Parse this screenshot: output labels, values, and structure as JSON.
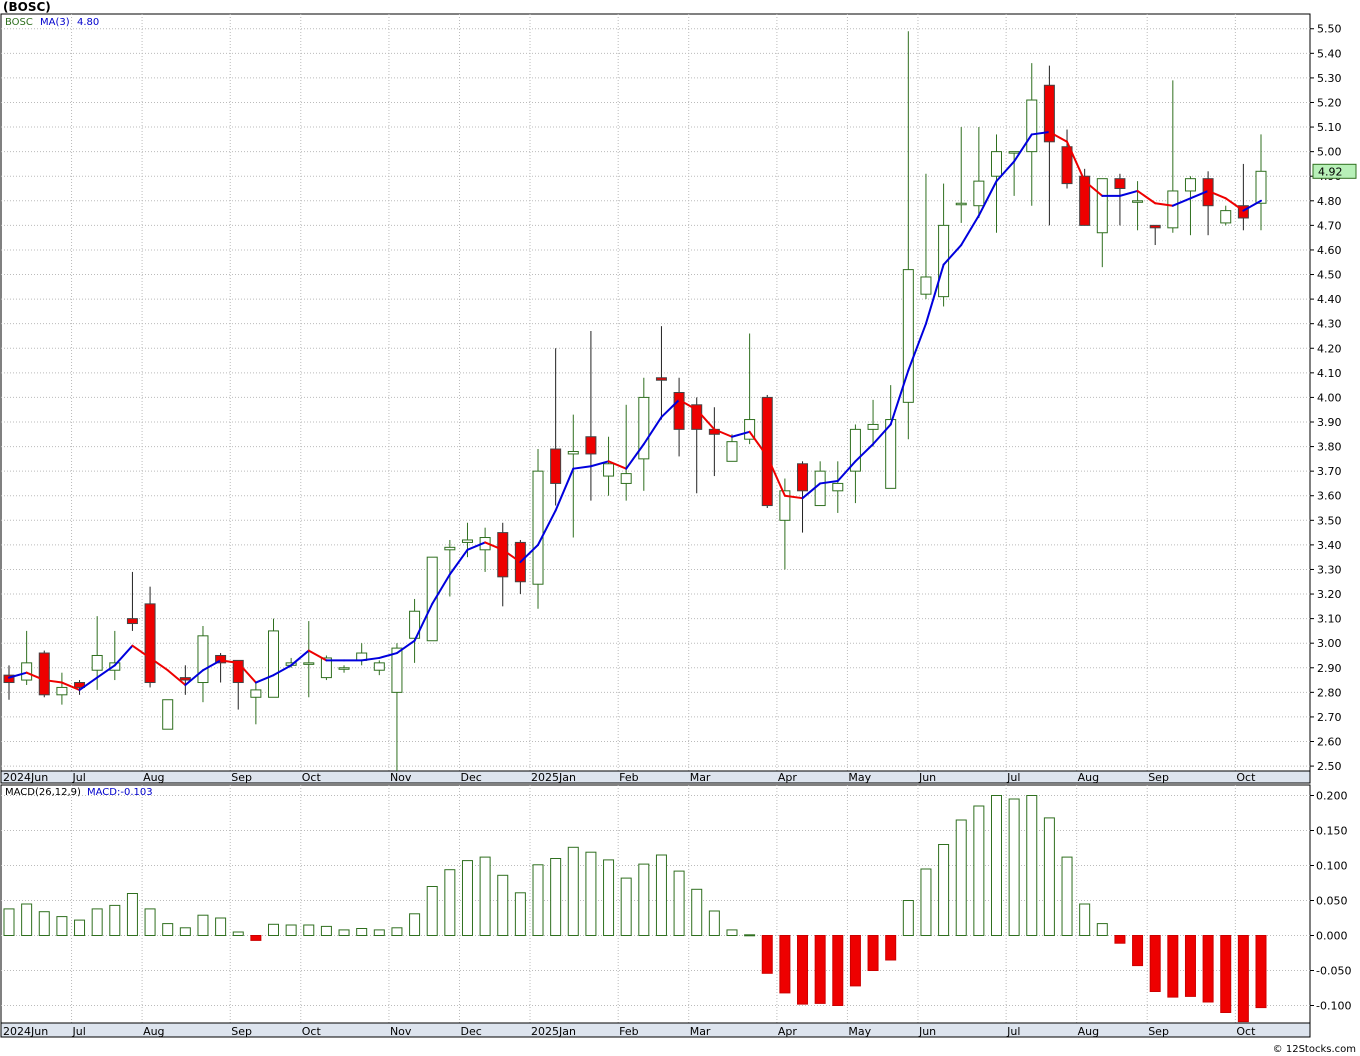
{
  "window": {
    "title": "(BOSC)",
    "footer": "© 12Stocks.com"
  },
  "colors": {
    "up_stroke": "#2f6f1f",
    "down_fill": "#ee0000",
    "ma_up": "#0000dd",
    "ma_down": "#ee0000",
    "grid": "#bbbbbb",
    "badge": "#b8f0b8"
  },
  "price_panel": {
    "legend": {
      "symbol": "BOSC",
      "ma_label": "MA(3)",
      "ma_value": "4.80"
    },
    "last_price": "4.92",
    "yticks": [
      "2.50",
      "2.60",
      "2.70",
      "2.80",
      "2.90",
      "3.00",
      "3.10",
      "3.20",
      "3.30",
      "3.40",
      "3.50",
      "3.60",
      "3.70",
      "3.80",
      "3.90",
      "4.00",
      "4.10",
      "4.20",
      "4.30",
      "4.40",
      "4.50",
      "4.60",
      "4.70",
      "4.80",
      "4.90",
      "5.00",
      "5.10",
      "5.20",
      "5.30",
      "5.40",
      "5.50"
    ]
  },
  "macd_panel": {
    "legend": {
      "label": "MACD(26,12,9)",
      "value_label": "MACD:-0.103"
    },
    "yticks": [
      "-0.100",
      "-0.050",
      "0.000",
      "0.050",
      "0.100",
      "0.150",
      "0.200"
    ]
  },
  "months": [
    "2024Jun",
    "Jul",
    "Aug",
    "Sep",
    "Oct",
    "Nov",
    "Dec",
    "2025Jan",
    "Feb",
    "Mar",
    "Apr",
    "May",
    "Jun",
    "Jul",
    "Aug",
    "Sep",
    "Oct"
  ],
  "chart_data": {
    "type": "candlestick",
    "title": "(BOSC)",
    "ylim": [
      2.48,
      5.56
    ],
    "macd_ylim": [
      -0.125,
      0.215
    ],
    "candles": [
      {
        "o": 2.87,
        "h": 2.91,
        "l": 2.77,
        "c": 2.84,
        "ma": 2.86
      },
      {
        "o": 2.85,
        "h": 3.05,
        "l": 2.83,
        "c": 2.92,
        "ma": 2.88
      },
      {
        "o": 2.96,
        "h": 2.97,
        "l": 2.78,
        "c": 2.79,
        "ma": 2.85
      },
      {
        "o": 2.79,
        "h": 2.88,
        "l": 2.75,
        "c": 2.82,
        "ma": 2.84
      },
      {
        "o": 2.84,
        "h": 2.85,
        "l": 2.79,
        "c": 2.82,
        "ma": 2.81
      },
      {
        "o": 2.89,
        "h": 3.11,
        "l": 2.81,
        "c": 2.95,
        "ma": 2.86
      },
      {
        "o": 2.89,
        "h": 3.05,
        "l": 2.85,
        "c": 2.92,
        "ma": 2.91
      },
      {
        "o": 3.1,
        "h": 3.29,
        "l": 3.05,
        "c": 3.08,
        "ma": 2.99
      },
      {
        "o": 3.16,
        "h": 3.23,
        "l": 2.82,
        "c": 2.84,
        "ma": 2.94
      },
      {
        "o": 2.65,
        "h": 2.77,
        "l": 2.65,
        "c": 2.77,
        "ma": 2.89
      },
      {
        "o": 2.86,
        "h": 2.91,
        "l": 2.79,
        "c": 2.85,
        "ma": 2.83
      },
      {
        "o": 2.84,
        "h": 3.07,
        "l": 2.76,
        "c": 3.03,
        "ma": 2.89
      },
      {
        "o": 2.95,
        "h": 2.96,
        "l": 2.84,
        "c": 2.92,
        "ma": 2.93
      },
      {
        "o": 2.93,
        "h": 2.93,
        "l": 2.73,
        "c": 2.84,
        "ma": 2.92
      },
      {
        "o": 2.78,
        "h": 2.84,
        "l": 2.67,
        "c": 2.81,
        "ma": 2.84
      },
      {
        "o": 2.78,
        "h": 3.1,
        "l": 2.78,
        "c": 3.05,
        "ma": 2.87
      },
      {
        "o": 2.91,
        "h": 2.94,
        "l": 2.9,
        "c": 2.92,
        "ma": 2.91
      },
      {
        "o": 2.92,
        "h": 3.09,
        "l": 2.78,
        "c": 2.92,
        "ma": 2.97
      },
      {
        "o": 2.86,
        "h": 2.95,
        "l": 2.85,
        "c": 2.94,
        "ma": 2.93
      },
      {
        "o": 2.9,
        "h": 2.91,
        "l": 2.88,
        "c": 2.9,
        "ma": 2.93
      },
      {
        "o": 2.93,
        "h": 3.0,
        "l": 2.91,
        "c": 2.96,
        "ma": 2.93
      },
      {
        "o": 2.89,
        "h": 2.93,
        "l": 2.87,
        "c": 2.92,
        "ma": 2.94
      },
      {
        "o": 2.8,
        "h": 3.0,
        "l": 2.48,
        "c": 2.98,
        "ma": 2.96
      },
      {
        "o": 3.02,
        "h": 3.18,
        "l": 2.92,
        "c": 3.13,
        "ma": 3.01
      },
      {
        "o": 3.01,
        "h": 3.35,
        "l": 3.02,
        "c": 3.35,
        "ma": 3.16
      },
      {
        "o": 3.38,
        "h": 3.42,
        "l": 3.19,
        "c": 3.39,
        "ma": 3.28
      },
      {
        "o": 3.41,
        "h": 3.49,
        "l": 3.35,
        "c": 3.42,
        "ma": 3.38
      },
      {
        "o": 3.38,
        "h": 3.47,
        "l": 3.29,
        "c": 3.43,
        "ma": 3.41
      },
      {
        "o": 3.45,
        "h": 3.49,
        "l": 3.15,
        "c": 3.27,
        "ma": 3.38
      },
      {
        "o": 3.41,
        "h": 3.42,
        "l": 3.2,
        "c": 3.25,
        "ma": 3.33
      },
      {
        "o": 3.24,
        "h": 3.79,
        "l": 3.14,
        "c": 3.7,
        "ma": 3.4
      },
      {
        "o": 3.79,
        "h": 4.2,
        "l": 3.56,
        "c": 3.65,
        "ma": 3.54
      },
      {
        "o": 3.77,
        "h": 3.93,
        "l": 3.43,
        "c": 3.78,
        "ma": 3.71
      },
      {
        "o": 3.84,
        "h": 4.27,
        "l": 3.58,
        "c": 3.77,
        "ma": 3.72
      },
      {
        "o": 3.68,
        "h": 3.84,
        "l": 3.6,
        "c": 3.73,
        "ma": 3.74
      },
      {
        "o": 3.65,
        "h": 3.97,
        "l": 3.58,
        "c": 3.69,
        "ma": 3.71
      },
      {
        "o": 3.75,
        "h": 4.08,
        "l": 3.62,
        "c": 4.0,
        "ma": 3.81
      },
      {
        "o": 4.08,
        "h": 4.29,
        "l": 3.91,
        "c": 4.07,
        "ma": 3.92
      },
      {
        "o": 4.02,
        "h": 4.08,
        "l": 3.76,
        "c": 3.87,
        "ma": 3.99
      },
      {
        "o": 3.97,
        "h": 4.0,
        "l": 3.61,
        "c": 3.87,
        "ma": 3.95
      },
      {
        "o": 3.87,
        "h": 3.96,
        "l": 3.68,
        "c": 3.85,
        "ma": 3.87
      },
      {
        "o": 3.74,
        "h": 3.85,
        "l": 3.74,
        "c": 3.82,
        "ma": 3.84
      },
      {
        "o": 3.83,
        "h": 4.26,
        "l": 3.81,
        "c": 3.91,
        "ma": 3.86
      },
      {
        "o": 4.0,
        "h": 4.01,
        "l": 3.55,
        "c": 3.56,
        "ma": 3.76
      },
      {
        "o": 3.5,
        "h": 3.67,
        "l": 3.3,
        "c": 3.62,
        "ma": 3.6
      },
      {
        "o": 3.73,
        "h": 3.74,
        "l": 3.45,
        "c": 3.62,
        "ma": 3.59
      },
      {
        "o": 3.56,
        "h": 3.74,
        "l": 3.56,
        "c": 3.7,
        "ma": 3.65
      },
      {
        "o": 3.62,
        "h": 3.74,
        "l": 3.53,
        "c": 3.65,
        "ma": 3.66
      },
      {
        "o": 3.7,
        "h": 3.89,
        "l": 3.57,
        "c": 3.87,
        "ma": 3.74
      },
      {
        "o": 3.87,
        "h": 3.99,
        "l": 3.8,
        "c": 3.89,
        "ma": 3.81
      },
      {
        "o": 3.63,
        "h": 4.05,
        "l": 3.63,
        "c": 3.91,
        "ma": 3.89
      },
      {
        "o": 3.98,
        "h": 5.49,
        "l": 3.83,
        "c": 4.52,
        "ma": 4.11
      },
      {
        "o": 4.42,
        "h": 4.91,
        "l": 4.4,
        "c": 4.49,
        "ma": 4.3
      },
      {
        "o": 4.41,
        "h": 4.87,
        "l": 4.37,
        "c": 4.7,
        "ma": 4.54
      },
      {
        "o": 4.79,
        "h": 5.1,
        "l": 4.71,
        "c": 4.79,
        "ma": 4.62
      },
      {
        "o": 4.78,
        "h": 5.1,
        "l": 4.73,
        "c": 4.88,
        "ma": 4.74
      },
      {
        "o": 4.9,
        "h": 5.07,
        "l": 4.67,
        "c": 5.0,
        "ma": 4.88
      },
      {
        "o": 5.0,
        "h": 5.0,
        "l": 4.82,
        "c": 5.0,
        "ma": 4.96
      },
      {
        "o": 5.0,
        "h": 5.36,
        "l": 4.78,
        "c": 5.21,
        "ma": 5.07
      },
      {
        "o": 5.27,
        "h": 5.35,
        "l": 4.7,
        "c": 5.04,
        "ma": 5.08
      },
      {
        "o": 5.02,
        "h": 5.09,
        "l": 4.85,
        "c": 4.87,
        "ma": 5.04
      },
      {
        "o": 4.9,
        "h": 4.93,
        "l": 4.7,
        "c": 4.7,
        "ma": 4.88
      },
      {
        "o": 4.67,
        "h": 4.89,
        "l": 4.53,
        "c": 4.89,
        "ma": 4.82
      },
      {
        "o": 4.89,
        "h": 4.91,
        "l": 4.7,
        "c": 4.85,
        "ma": 4.82
      },
      {
        "o": 4.8,
        "h": 4.88,
        "l": 4.68,
        "c": 4.8,
        "ma": 4.84
      },
      {
        "o": 4.7,
        "h": 4.7,
        "l": 4.62,
        "c": 4.69,
        "ma": 4.79
      },
      {
        "o": 4.69,
        "h": 5.29,
        "l": 4.67,
        "c": 4.84,
        "ma": 4.78
      },
      {
        "o": 4.84,
        "h": 4.9,
        "l": 4.66,
        "c": 4.89,
        "ma": 4.81
      },
      {
        "o": 4.89,
        "h": 4.92,
        "l": 4.66,
        "c": 4.78,
        "ma": 4.84
      },
      {
        "o": 4.71,
        "h": 4.78,
        "l": 4.7,
        "c": 4.76,
        "ma": 4.81
      },
      {
        "o": 4.78,
        "h": 4.95,
        "l": 4.68,
        "c": 4.73,
        "ma": 4.76
      },
      {
        "o": 4.79,
        "h": 5.07,
        "l": 4.68,
        "c": 4.92,
        "ma": 4.8
      }
    ],
    "macd": [
      0.038,
      0.045,
      0.034,
      0.027,
      0.022,
      0.038,
      0.043,
      0.06,
      0.038,
      0.017,
      0.011,
      0.029,
      0.025,
      0.005,
      -0.007,
      0.016,
      0.015,
      0.015,
      0.013,
      0.008,
      0.01,
      0.008,
      0.011,
      0.031,
      0.07,
      0.094,
      0.107,
      0.112,
      0.086,
      0.061,
      0.101,
      0.11,
      0.126,
      0.119,
      0.108,
      0.082,
      0.102,
      0.115,
      0.092,
      0.066,
      0.035,
      0.008,
      0.001,
      -0.054,
      -0.082,
      -0.098,
      -0.097,
      -0.1,
      -0.072,
      -0.05,
      -0.035,
      0.05,
      0.095,
      0.13,
      0.165,
      0.185,
      0.2,
      0.195,
      0.2,
      0.168,
      0.112,
      0.045,
      0.017,
      -0.011,
      -0.043,
      -0.08,
      -0.088,
      -0.087,
      -0.095,
      -0.11,
      -0.123,
      -0.103
    ]
  }
}
